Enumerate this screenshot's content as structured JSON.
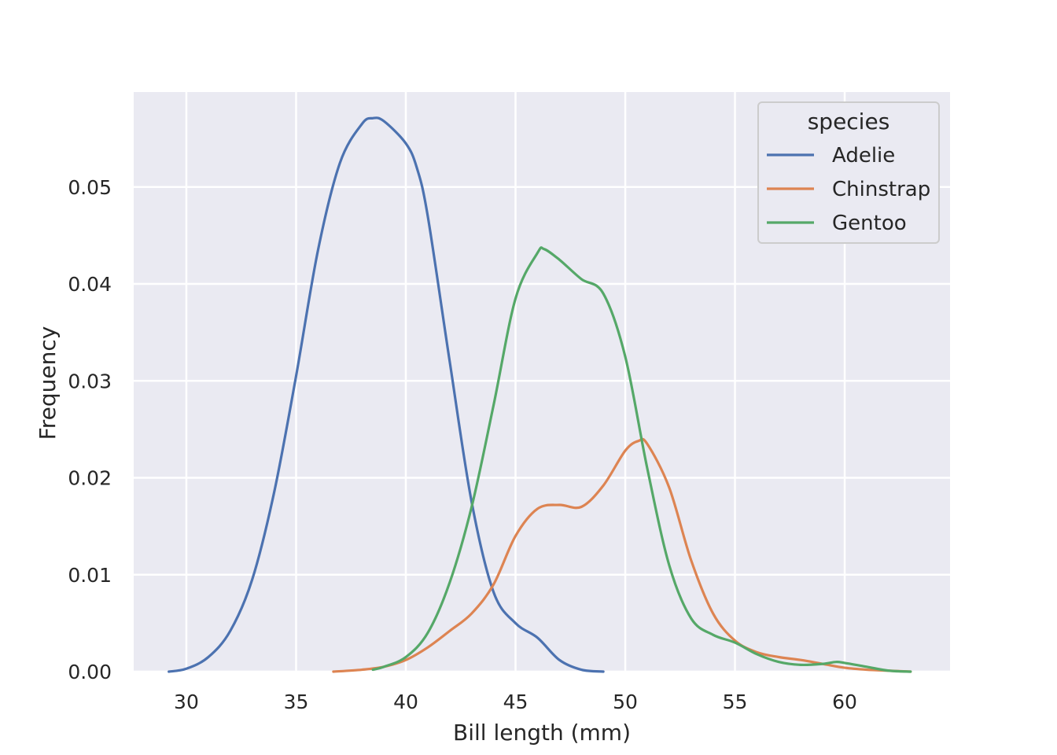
{
  "chart_data": {
    "type": "line",
    "title": "",
    "xlabel": "Bill length (mm)",
    "ylabel": "Frequency",
    "xlim": [
      27.6,
      64.8
    ],
    "ylim": [
      0.0,
      0.0598
    ],
    "xticks": [
      30,
      35,
      40,
      45,
      50,
      55,
      60
    ],
    "xtick_labels": [
      "30",
      "35",
      "40",
      "45",
      "50",
      "55",
      "60"
    ],
    "yticks": [
      0.0,
      0.01,
      0.02,
      0.03,
      0.04,
      0.05
    ],
    "ytick_labels": [
      "0.00",
      "0.01",
      "0.02",
      "0.03",
      "0.04",
      "0.05"
    ],
    "grid": true,
    "background": "#eaeaf2",
    "legend": {
      "title": "species",
      "position": "top-right"
    },
    "series": [
      {
        "name": "Adelie",
        "color": "#4c72b0",
        "points": [
          [
            29.2,
            0.0
          ],
          [
            30.0,
            0.0003
          ],
          [
            31.0,
            0.0015
          ],
          [
            32.0,
            0.0042
          ],
          [
            33.0,
            0.0095
          ],
          [
            34.0,
            0.0185
          ],
          [
            35.0,
            0.0305
          ],
          [
            36.0,
            0.0435
          ],
          [
            37.0,
            0.0525
          ],
          [
            38.0,
            0.0565
          ],
          [
            38.5,
            0.0571
          ],
          [
            39.0,
            0.0568
          ],
          [
            40.0,
            0.0545
          ],
          [
            40.5,
            0.052
          ],
          [
            41.0,
            0.047
          ],
          [
            42.0,
            0.032
          ],
          [
            43.0,
            0.0175
          ],
          [
            44.0,
            0.0082
          ],
          [
            45.0,
            0.005
          ],
          [
            46.0,
            0.0035
          ],
          [
            47.0,
            0.0012
          ],
          [
            48.0,
            0.0002
          ],
          [
            49.0,
            0.0
          ]
        ]
      },
      {
        "name": "Chinstrap",
        "color": "#dd8452",
        "points": [
          [
            36.7,
            0.0
          ],
          [
            38.0,
            0.0002
          ],
          [
            39.0,
            0.0005
          ],
          [
            40.0,
            0.0012
          ],
          [
            41.0,
            0.0025
          ],
          [
            42.0,
            0.0042
          ],
          [
            43.0,
            0.006
          ],
          [
            44.0,
            0.009
          ],
          [
            45.0,
            0.014
          ],
          [
            46.0,
            0.0168
          ],
          [
            47.0,
            0.0172
          ],
          [
            48.0,
            0.017
          ],
          [
            49.0,
            0.0192
          ],
          [
            50.0,
            0.0228
          ],
          [
            50.6,
            0.0238
          ],
          [
            51.0,
            0.0235
          ],
          [
            52.0,
            0.019
          ],
          [
            53.0,
            0.0115
          ],
          [
            54.0,
            0.006
          ],
          [
            55.0,
            0.0032
          ],
          [
            56.0,
            0.002
          ],
          [
            57.0,
            0.0015
          ],
          [
            58.0,
            0.0012
          ],
          [
            59.0,
            0.0008
          ],
          [
            60.0,
            0.0004
          ],
          [
            61.0,
            0.0002
          ],
          [
            62.0,
            0.0001
          ],
          [
            63.0,
            0.0
          ]
        ]
      },
      {
        "name": "Gentoo",
        "color": "#55a868",
        "points": [
          [
            38.5,
            0.0002
          ],
          [
            39.0,
            0.0005
          ],
          [
            40.0,
            0.0015
          ],
          [
            41.0,
            0.004
          ],
          [
            42.0,
            0.0092
          ],
          [
            43.0,
            0.017
          ],
          [
            44.0,
            0.0275
          ],
          [
            45.0,
            0.0385
          ],
          [
            46.0,
            0.0432
          ],
          [
            46.3,
            0.0436
          ],
          [
            47.0,
            0.0425
          ],
          [
            48.0,
            0.0405
          ],
          [
            49.0,
            0.039
          ],
          [
            50.0,
            0.0325
          ],
          [
            51.0,
            0.021
          ],
          [
            52.0,
            0.011
          ],
          [
            53.0,
            0.0055
          ],
          [
            54.0,
            0.0038
          ],
          [
            55.0,
            0.003
          ],
          [
            56.0,
            0.0018
          ],
          [
            57.0,
            0.001
          ],
          [
            58.0,
            0.0007
          ],
          [
            59.0,
            0.0008
          ],
          [
            59.6,
            0.001
          ],
          [
            60.0,
            0.0009
          ],
          [
            61.0,
            0.0005
          ],
          [
            62.0,
            0.0001
          ],
          [
            63.0,
            0.0
          ]
        ]
      }
    ]
  }
}
